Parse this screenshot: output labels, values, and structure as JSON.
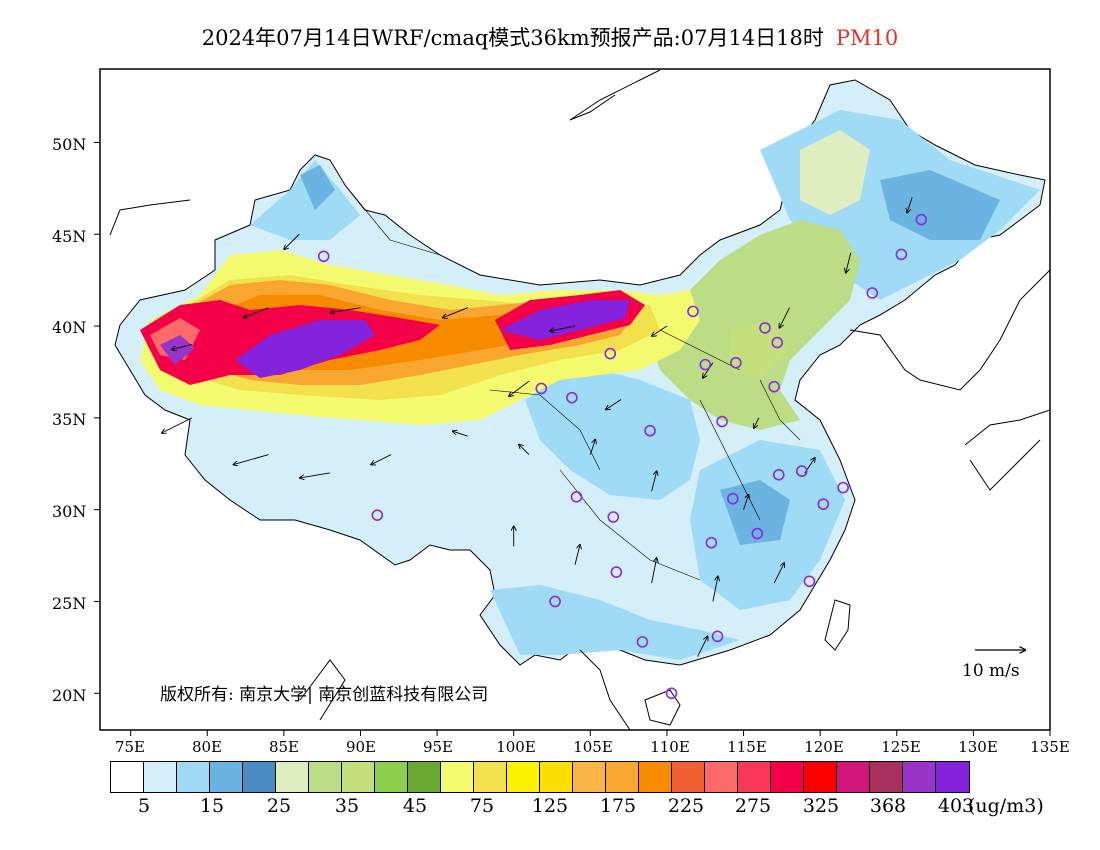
{
  "title": {
    "main": "2024年07月14日WRF/cmaq模式36km预报产品:07月14日18时",
    "species": "PM10",
    "species_color": "#e8322d"
  },
  "axes": {
    "lat_labels": [
      "50N",
      "45N",
      "40N",
      "35N",
      "30N",
      "25N",
      "20N"
    ],
    "lon_labels": [
      "75E",
      "80E",
      "85E",
      "90E",
      "95E",
      "100E",
      "105E",
      "110E",
      "115E",
      "120E",
      "125E",
      "130E",
      "135E"
    ]
  },
  "copyright": "版权所有: 南京大学| 南京创蓝科技有限公司",
  "wind_reference": "10 m/s",
  "colorbar": {
    "colors": [
      "#ffffff",
      "#d4eefa",
      "#9fdaf6",
      "#6bb3e0",
      "#4a8cc4",
      "#e0edc1",
      "#bcdc86",
      "#c4e07c",
      "#8ccf4c",
      "#6aa832",
      "#f4fa6e",
      "#f2e04c",
      "#fcf200",
      "#fade00",
      "#f8b444",
      "#f8a630",
      "#f88a00",
      "#f06030",
      "#fc6a6a",
      "#f83858",
      "#f40048",
      "#fc0000",
      "#d01678",
      "#a8305e",
      "#9a34c8",
      "#8422dc"
    ],
    "labels": [
      "5",
      "15",
      "25",
      "35",
      "45",
      "75",
      "125",
      "175",
      "225",
      "275",
      "325",
      "368",
      "403"
    ],
    "unit": "(ug/m3)"
  },
  "map_colors": {
    "background": "#ffffff",
    "low_blue": "#9fdaf6",
    "very_low": "#d4eefa",
    "mid_blue": "#6bb3e0",
    "green": "#bcdc86",
    "yellow": "#f4fa6e",
    "orange": "#f8a630",
    "red": "#f40048",
    "purple": "#8422dc"
  },
  "stations": [
    {
      "lon": 87.6,
      "lat": 43.8
    },
    {
      "lon": 91.1,
      "lat": 29.7
    },
    {
      "lon": 101.8,
      "lat": 36.6
    },
    {
      "lon": 103.8,
      "lat": 36.1
    },
    {
      "lon": 106.3,
      "lat": 38.5
    },
    {
      "lon": 111.7,
      "lat": 40.8
    },
    {
      "lon": 112.5,
      "lat": 37.9
    },
    {
      "lon": 114.5,
      "lat": 38.0
    },
    {
      "lon": 116.4,
      "lat": 39.9
    },
    {
      "lon": 117.2,
      "lat": 39.1
    },
    {
      "lon": 117.0,
      "lat": 36.7
    },
    {
      "lon": 113.6,
      "lat": 34.8
    },
    {
      "lon": 108.9,
      "lat": 34.3
    },
    {
      "lon": 104.1,
      "lat": 30.7
    },
    {
      "lon": 106.5,
      "lat": 29.6
    },
    {
      "lon": 114.3,
      "lat": 30.6
    },
    {
      "lon": 112.9,
      "lat": 28.2
    },
    {
      "lon": 115.9,
      "lat": 28.7
    },
    {
      "lon": 118.8,
      "lat": 32.1
    },
    {
      "lon": 117.3,
      "lat": 31.9
    },
    {
      "lon": 120.2,
      "lat": 30.3
    },
    {
      "lon": 121.5,
      "lat": 31.2
    },
    {
      "lon": 119.3,
      "lat": 26.1
    },
    {
      "lon": 113.3,
      "lat": 23.1
    },
    {
      "lon": 108.4,
      "lat": 22.8
    },
    {
      "lon": 102.7,
      "lat": 25.0
    },
    {
      "lon": 106.7,
      "lat": 26.6
    },
    {
      "lon": 110.3,
      "lat": 20.0
    },
    {
      "lon": 123.4,
      "lat": 41.8
    },
    {
      "lon": 125.3,
      "lat": 43.9
    },
    {
      "lon": 126.6,
      "lat": 45.8
    }
  ],
  "wind_arrows": [
    {
      "lon": 79,
      "lat": 35,
      "u": -6,
      "v": -3
    },
    {
      "lon": 84,
      "lat": 33,
      "u": -7,
      "v": -2
    },
    {
      "lon": 88,
      "lat": 32,
      "u": -6,
      "v": -1
    },
    {
      "lon": 92,
      "lat": 33,
      "u": -4,
      "v": -2
    },
    {
      "lon": 97,
      "lat": 34,
      "u": -3,
      "v": 1
    },
    {
      "lon": 101,
      "lat": 33,
      "u": -2,
      "v": 2
    },
    {
      "lon": 105,
      "lat": 33,
      "u": 1,
      "v": 3
    },
    {
      "lon": 109,
      "lat": 31,
      "u": 1,
      "v": 4
    },
    {
      "lon": 104,
      "lat": 27,
      "u": 1,
      "v": 4
    },
    {
      "lon": 109,
      "lat": 26,
      "u": 1,
      "v": 5
    },
    {
      "lon": 113,
      "lat": 25,
      "u": 1,
      "v": 5
    },
    {
      "lon": 117,
      "lat": 26,
      "u": 2,
      "v": 4
    },
    {
      "lon": 115,
      "lat": 30,
      "u": 1,
      "v": 3
    },
    {
      "lon": 119,
      "lat": 32,
      "u": 2,
      "v": 3
    },
    {
      "lon": 116,
      "lat": 35,
      "u": -1,
      "v": -2
    },
    {
      "lon": 113,
      "lat": 38,
      "u": -2,
      "v": -3
    },
    {
      "lon": 118,
      "lat": 41,
      "u": -2,
      "v": -4
    },
    {
      "lon": 122,
      "lat": 44,
      "u": -1,
      "v": -4
    },
    {
      "lon": 126,
      "lat": 47,
      "u": -1,
      "v": -3
    },
    {
      "lon": 110,
      "lat": 40,
      "u": -3,
      "v": -2
    },
    {
      "lon": 104,
      "lat": 40,
      "u": -5,
      "v": -1
    },
    {
      "lon": 97,
      "lat": 41,
      "u": -5,
      "v": -2
    },
    {
      "lon": 90,
      "lat": 41,
      "u": -6,
      "v": -1
    },
    {
      "lon": 84,
      "lat": 41,
      "u": -5,
      "v": -2
    },
    {
      "lon": 79,
      "lat": 39,
      "u": -4,
      "v": -1
    },
    {
      "lon": 86,
      "lat": 45,
      "u": -3,
      "v": -3
    },
    {
      "lon": 101,
      "lat": 37,
      "u": -4,
      "v": -3
    },
    {
      "lon": 107,
      "lat": 36,
      "u": -3,
      "v": -2
    },
    {
      "lon": 100,
      "lat": 28,
      "u": 0,
      "v": 4
    },
    {
      "lon": 112,
      "lat": 22,
      "u": 2,
      "v": 4
    }
  ]
}
